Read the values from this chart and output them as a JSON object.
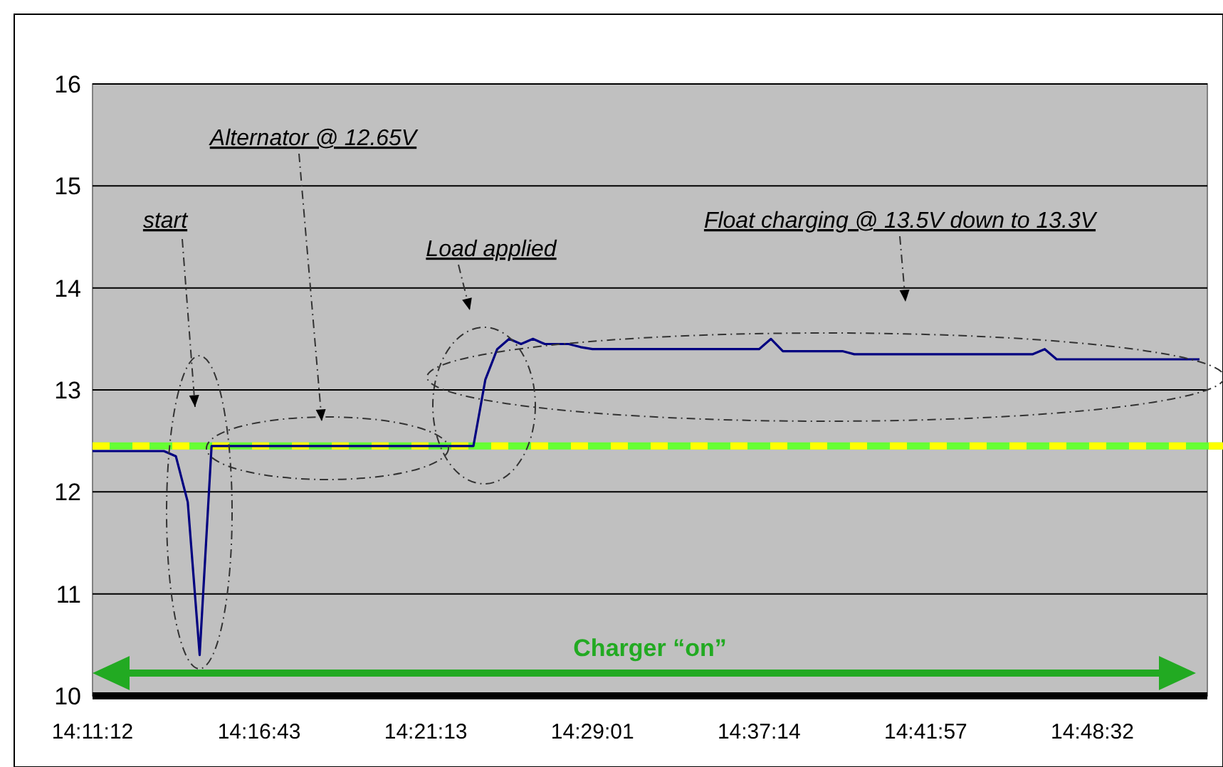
{
  "chart_data": {
    "type": "line",
    "categories": [
      "14:11:12",
      null,
      null,
      null,
      null,
      null,
      null,
      null,
      null,
      null,
      null,
      null,
      null,
      null,
      "14:16:43",
      null,
      null,
      null,
      null,
      null,
      null,
      null,
      null,
      null,
      null,
      null,
      null,
      null,
      "14:21:13",
      null,
      null,
      null,
      null,
      null,
      null,
      null,
      null,
      null,
      null,
      null,
      null,
      null,
      "14:29:01",
      null,
      null,
      null,
      null,
      null,
      null,
      null,
      null,
      null,
      null,
      null,
      null,
      null,
      "14:37:14",
      null,
      null,
      null,
      null,
      null,
      null,
      null,
      null,
      null,
      null,
      null,
      null,
      null,
      "14:41:57",
      null,
      null,
      null,
      null,
      null,
      null,
      null,
      null,
      null,
      null,
      null,
      null,
      null,
      "14:48:32",
      null,
      null,
      null,
      null,
      null,
      null,
      null,
      null,
      null
    ],
    "series": [
      {
        "color": "#000080",
        "values": [
          12.4,
          12.4,
          12.4,
          12.4,
          12.4,
          12.4,
          12.4,
          12.35,
          11.9,
          10.4,
          12.45,
          12.45,
          12.45,
          12.45,
          12.45,
          12.45,
          12.45,
          12.45,
          12.45,
          12.45,
          12.45,
          12.45,
          12.45,
          12.45,
          12.45,
          12.45,
          12.45,
          12.45,
          12.45,
          12.45,
          12.45,
          12.45,
          12.45,
          13.1,
          13.4,
          13.5,
          13.45,
          13.5,
          13.45,
          13.45,
          13.45,
          13.42,
          13.4,
          13.4,
          13.4,
          13.4,
          13.4,
          13.4,
          13.4,
          13.4,
          13.4,
          13.4,
          13.4,
          13.4,
          13.4,
          13.4,
          13.4,
          13.5,
          13.38,
          13.38,
          13.38,
          13.38,
          13.38,
          13.38,
          13.35,
          13.35,
          13.35,
          13.35,
          13.35,
          13.35,
          13.35,
          13.35,
          13.35,
          13.35,
          13.35,
          13.35,
          13.35,
          13.35,
          13.35,
          13.35,
          13.4,
          13.3,
          13.3,
          13.3,
          13.3,
          13.3,
          13.3,
          13.3,
          13.3,
          13.3,
          13.3,
          13.3,
          13.3,
          13.3
        ]
      }
    ],
    "ylim": [
      10,
      16
    ],
    "yticks": [
      10,
      11,
      12,
      13,
      14,
      15,
      16
    ],
    "grid": "y",
    "ref_lines": [
      {
        "axis": "y",
        "value": 12.45,
        "color": "#66ff33",
        "line_style": "solid"
      },
      {
        "axis": "y",
        "value": 12.45,
        "color": "#ffff00",
        "line_style": "dashed"
      }
    ],
    "annotations": [
      "start",
      "Alternator @ 12.65V",
      "Load applied",
      "Float charging @ 13.5V down to 13.3V",
      "Charger “on”"
    ]
  }
}
